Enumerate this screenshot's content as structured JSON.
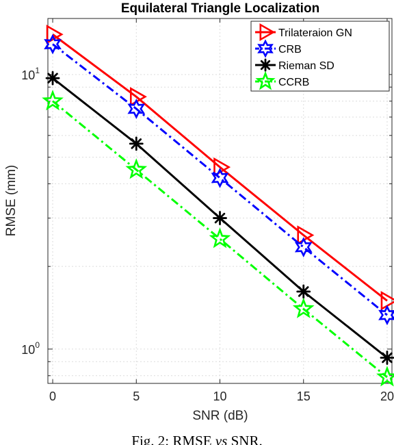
{
  "chart_data": {
    "type": "line",
    "title": "Equilateral Triangle Localization",
    "xlabel": "SNR (dB)",
    "ylabel": "RMSE (mm)",
    "yscale": "log",
    "x": [
      0,
      5,
      10,
      15,
      20
    ],
    "xlim": [
      0,
      20
    ],
    "ylim": [
      0.75,
      16
    ],
    "xticks": [
      "0",
      "5",
      "10",
      "15",
      "20"
    ],
    "yticks": [
      {
        "value": 1,
        "base": "10",
        "exp": "0"
      },
      {
        "value": 10,
        "base": "10",
        "exp": "1"
      }
    ],
    "grid": true,
    "legend_position": "top-right",
    "series": [
      {
        "name": "Trilateraion GN",
        "color": "#ff0000",
        "marker": "triangle-right",
        "linestyle": "solid",
        "values": [
          14.0,
          8.3,
          4.6,
          2.6,
          1.5
        ]
      },
      {
        "name": "CRB",
        "color": "#0000ff",
        "marker": "hexagram",
        "linestyle": "dashdot",
        "values": [
          12.9,
          7.5,
          4.2,
          2.35,
          1.33
        ]
      },
      {
        "name": "Rieman SD",
        "color": "#000000",
        "marker": "asterisk",
        "linestyle": "solid",
        "values": [
          9.7,
          5.6,
          3.0,
          1.62,
          0.93
        ]
      },
      {
        "name": "CCRB",
        "color": "#00ff00",
        "marker": "pentagram",
        "linestyle": "dashdot",
        "values": [
          8.0,
          4.5,
          2.52,
          1.4,
          0.79
        ]
      }
    ]
  },
  "caption": {
    "prefix": "Fig. 2: RMSE ",
    "vs": "vs",
    "suffix": " SNR."
  }
}
